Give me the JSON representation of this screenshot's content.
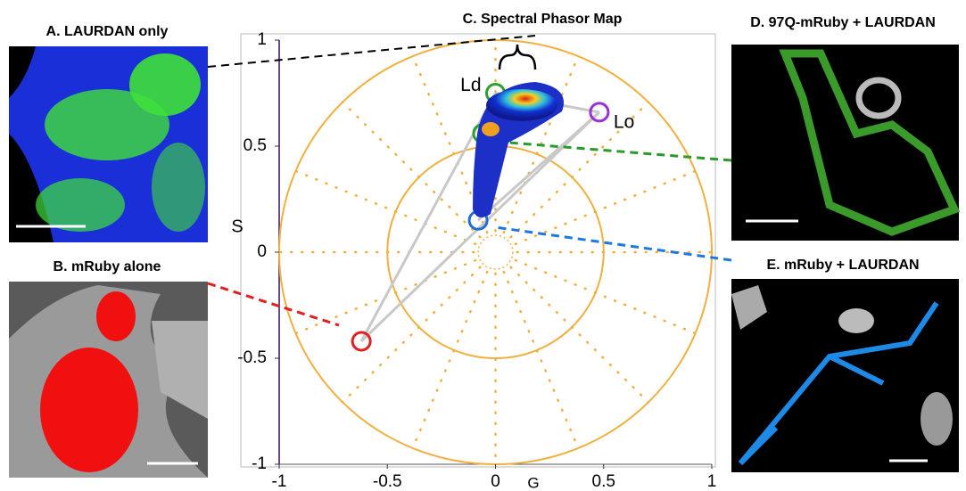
{
  "panels": {
    "a": {
      "title": "A. LAURDAN only"
    },
    "b": {
      "title": "B. mRuby alone"
    },
    "d": {
      "title": "D. 97Q-mRuby + LAURDAN"
    },
    "e": {
      "title": "E. mRuby + LAURDAN"
    }
  },
  "chart_data": {
    "type": "scatter",
    "title": "C. Spectral Phasor Map",
    "x_label": "G",
    "y_label": "S",
    "xlim": [
      -1,
      1
    ],
    "ylim": [
      -1,
      1
    ],
    "xticks": [
      -1,
      -0.5,
      0,
      0.5,
      1
    ],
    "yticks": [
      -1,
      -0.5,
      0,
      0.5,
      1
    ],
    "annotations": [
      {
        "text": "Ld",
        "x": 0.0,
        "y": 0.75,
        "color": "#2ca02c"
      },
      {
        "text": "Lo",
        "x": 0.48,
        "y": 0.66,
        "color": "#9b30d9"
      }
    ],
    "cursors": [
      {
        "x": -0.06,
        "y": 0.56,
        "color": "#2ca02c"
      },
      {
        "x": -0.08,
        "y": 0.15,
        "color": "#1f6fd6"
      },
      {
        "x": -0.62,
        "y": -0.42,
        "color": "#e02020"
      }
    ]
  }
}
